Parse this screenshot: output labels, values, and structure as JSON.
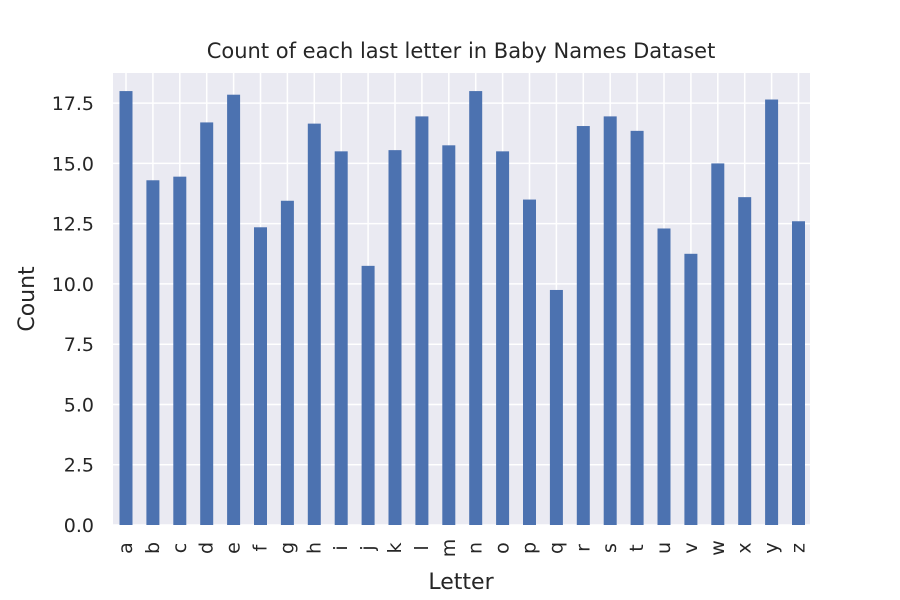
{
  "chart_data": {
    "type": "bar",
    "title": "Count of each last letter in Baby Names Dataset",
    "xlabel": "Letter",
    "ylabel": "Count",
    "categories": [
      "a",
      "b",
      "c",
      "d",
      "e",
      "f",
      "g",
      "h",
      "i",
      "j",
      "k",
      "l",
      "m",
      "n",
      "o",
      "p",
      "q",
      "r",
      "s",
      "t",
      "u",
      "v",
      "w",
      "x",
      "y",
      "z"
    ],
    "values": [
      18.0,
      14.3,
      14.45,
      16.7,
      17.85,
      12.35,
      13.45,
      16.65,
      15.5,
      10.75,
      15.55,
      16.95,
      15.75,
      18.0,
      15.5,
      13.5,
      9.75,
      16.55,
      16.95,
      16.35,
      12.3,
      11.25,
      15.0,
      13.6,
      17.65,
      12.6
    ],
    "ylim": [
      0,
      18.75
    ],
    "yticks": [
      "0.0",
      "2.5",
      "5.0",
      "7.5",
      "10.0",
      "12.5",
      "15.0",
      "17.5"
    ],
    "grid": true,
    "colors": {
      "bar": "#4c72b0",
      "background": "#eaeaf2",
      "grid": "#ffffff"
    }
  }
}
